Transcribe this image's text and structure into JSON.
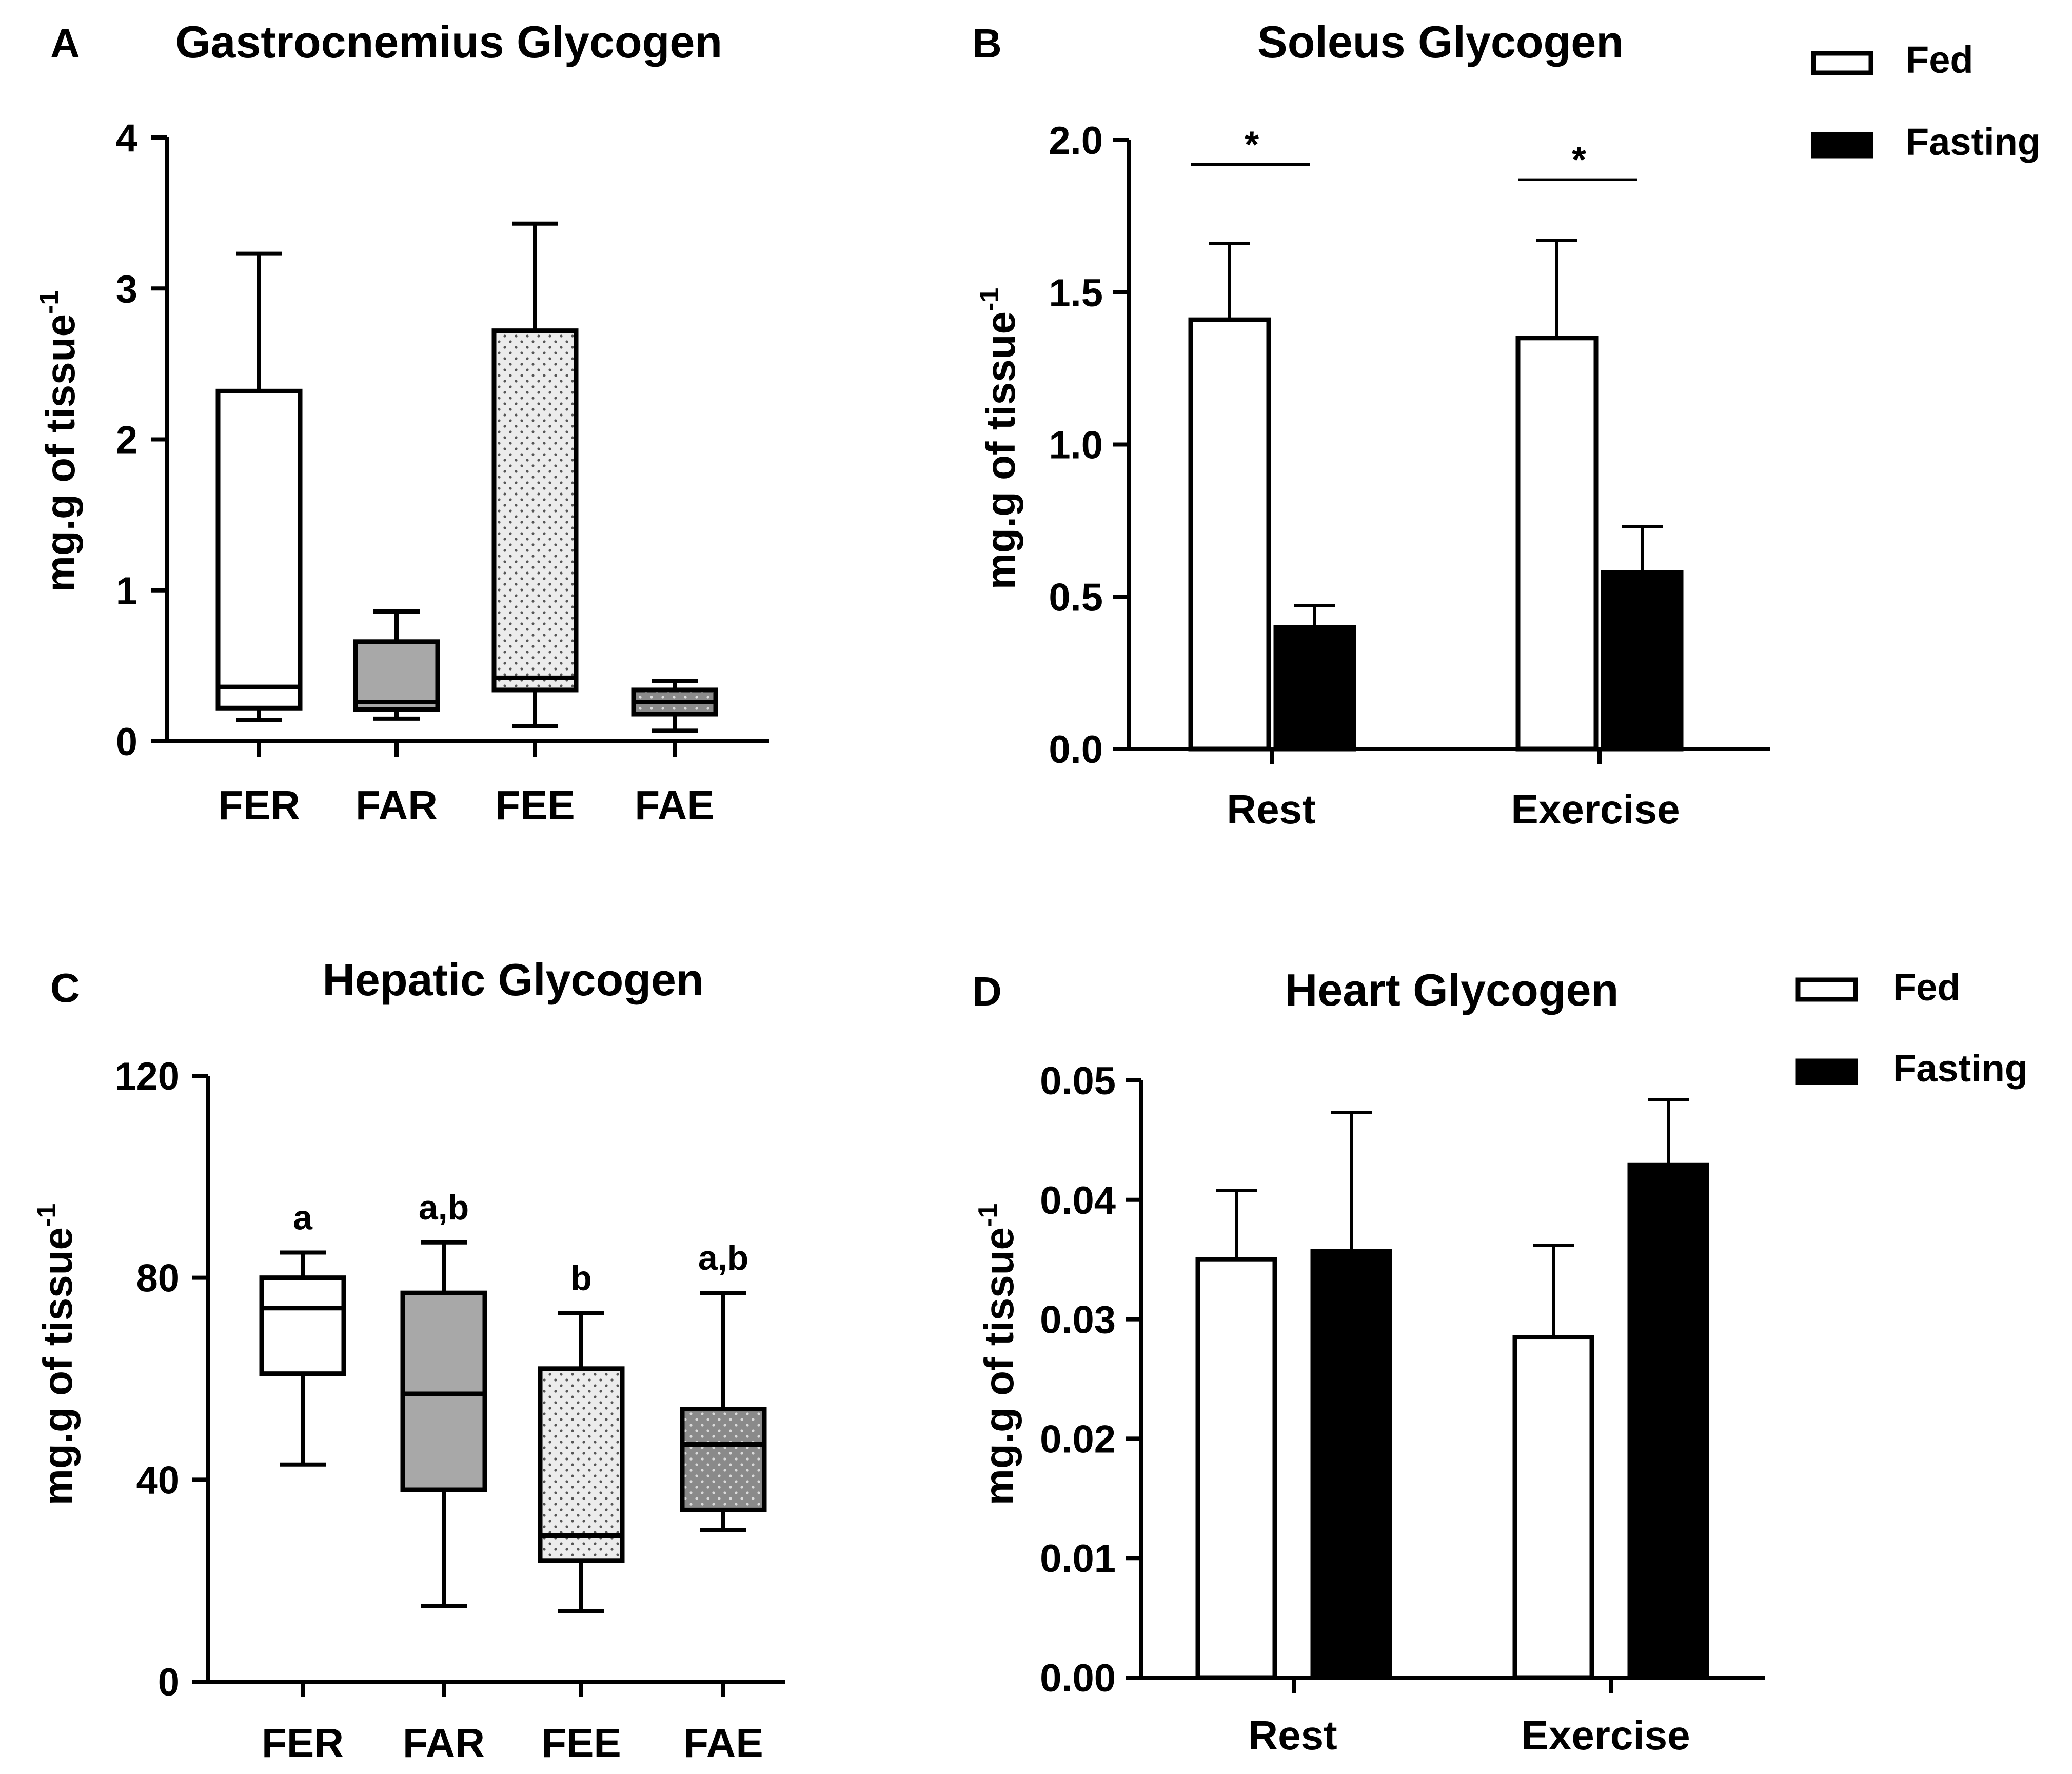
{
  "colors": {
    "fed": "#ffffff",
    "fasting": "#000000",
    "gray": "#a8a8a8",
    "dotted_light": "#ececec",
    "dotted_dark": "#8a8a8a",
    "dot": "#555555"
  },
  "chart_data": [
    {
      "id": "A",
      "panel_label": "A",
      "type": "box",
      "title": "Gastrocnemius Glycogen",
      "ylabel": "mg.g of tissue",
      "ylabel_sup": "-1",
      "ylim": [
        0,
        4
      ],
      "yticks": [
        0,
        1,
        2,
        3,
        4
      ],
      "tick_labels": [
        "0",
        "1",
        "2",
        "3",
        "4"
      ],
      "categories": [
        "FER",
        "FAR",
        "FEE",
        "FAE"
      ],
      "boxes": [
        {
          "name": "FER",
          "fill": "white",
          "min": 0.14,
          "q1": 0.22,
          "median": 0.36,
          "q3": 2.32,
          "max": 3.23
        },
        {
          "name": "FAR",
          "fill": "gray",
          "min": 0.15,
          "q1": 0.21,
          "median": 0.26,
          "q3": 0.66,
          "max": 0.86
        },
        {
          "name": "FEE",
          "fill": "dotted_light",
          "min": 0.1,
          "q1": 0.34,
          "median": 0.42,
          "q3": 2.72,
          "max": 3.43
        },
        {
          "name": "FAE",
          "fill": "dotted_dark",
          "min": 0.07,
          "q1": 0.18,
          "median": 0.26,
          "q3": 0.34,
          "max": 0.4
        }
      ]
    },
    {
      "id": "B",
      "panel_label": "B",
      "type": "bar",
      "title": "Soleus Glycogen",
      "ylabel": "mg.g of tissue",
      "ylabel_sup": "-1",
      "ylim": [
        0,
        2.0
      ],
      "yticks": [
        0,
        0.5,
        1.0,
        1.5,
        2.0
      ],
      "tick_labels": [
        "0.0",
        "0.5",
        "1.0",
        "1.5",
        "2.0"
      ],
      "categories": [
        "Rest",
        "Exercise"
      ],
      "series": [
        {
          "name": "Fed",
          "values": [
            1.41,
            1.35
          ],
          "errors": [
            0.25,
            0.32
          ]
        },
        {
          "name": "Fasting",
          "values": [
            0.4,
            0.58
          ],
          "errors": [
            0.07,
            0.15
          ]
        }
      ],
      "significance": [
        {
          "category": "Rest",
          "label": "*",
          "y": 1.92
        },
        {
          "category": "Exercise",
          "label": "*",
          "y": 1.87
        }
      ],
      "legend": {
        "position": "top-right",
        "items": [
          "Fed",
          "Fasting"
        ]
      }
    },
    {
      "id": "C",
      "panel_label": "C",
      "type": "box",
      "title": "Hepatic Glycogen",
      "ylabel": "mg.g of tissue",
      "ylabel_sup": "-1",
      "ylim": [
        0,
        120
      ],
      "yticks": [
        0,
        40,
        80,
        120
      ],
      "tick_labels": [
        "0",
        "40",
        "80",
        "120"
      ],
      "categories": [
        "FER",
        "FAR",
        "FEE",
        "FAE"
      ],
      "boxes": [
        {
          "name": "FER",
          "fill": "white",
          "min": 43,
          "q1": 61,
          "median": 74,
          "q3": 80,
          "max": 85,
          "letter": "a"
        },
        {
          "name": "FAR",
          "fill": "gray",
          "min": 15,
          "q1": 38,
          "median": 57,
          "q3": 77,
          "max": 87,
          "letter": "a,b"
        },
        {
          "name": "FEE",
          "fill": "dotted_light",
          "min": 14,
          "q1": 24,
          "median": 29,
          "q3": 62,
          "max": 73,
          "letter": "b"
        },
        {
          "name": "FAE",
          "fill": "dotted_dark",
          "min": 30,
          "q1": 34,
          "median": 47,
          "q3": 54,
          "max": 77,
          "letter": "a,b"
        }
      ]
    },
    {
      "id": "D",
      "panel_label": "D",
      "type": "bar",
      "title": "Heart Glycogen",
      "ylabel": "mg.g of tissue",
      "ylabel_sup": "-1",
      "ylim": [
        0,
        0.05
      ],
      "yticks": [
        0,
        0.01,
        0.02,
        0.03,
        0.04,
        0.05
      ],
      "tick_labels": [
        "0.00",
        "0.01",
        "0.02",
        "0.03",
        "0.04",
        "0.05"
      ],
      "categories": [
        "Rest",
        "Exercise"
      ],
      "series": [
        {
          "name": "Fed",
          "values": [
            0.035,
            0.0285
          ],
          "errors": [
            0.0058,
            0.0077
          ]
        },
        {
          "name": "Fasting",
          "values": [
            0.0357,
            0.0429
          ],
          "errors": [
            0.0116,
            0.0055
          ]
        }
      ],
      "legend": {
        "position": "top-right",
        "items": [
          "Fed",
          "Fasting"
        ]
      }
    }
  ]
}
